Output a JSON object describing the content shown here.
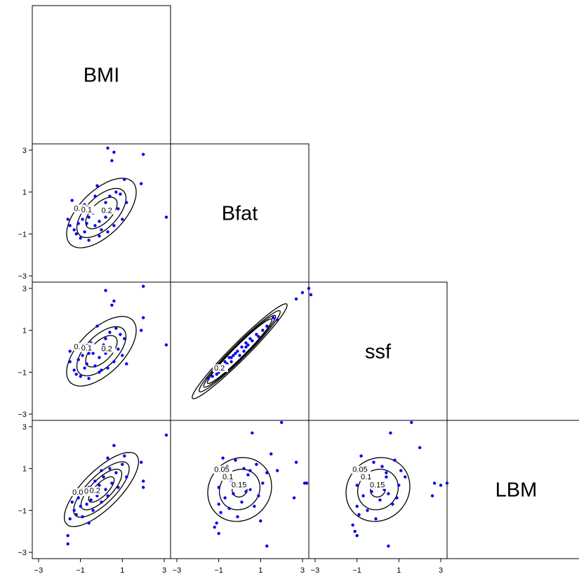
{
  "chart_data": {
    "type": "scatter",
    "layout": "lower-triangular pairs plot with bivariate density contours",
    "variables": [
      "BMI",
      "Bfat",
      "ssf",
      "LBM"
    ],
    "axis_range": [
      -3.3,
      3.3
    ],
    "ticks": [
      -3,
      -1,
      1,
      3
    ],
    "tick_labels": [
      "−3",
      "−1",
      "1",
      "3"
    ],
    "point_color": "#0000ee",
    "contour_color": "#000000",
    "contour_levels": [
      0.05,
      0.1,
      0.15,
      0.2
    ],
    "panels": [
      {
        "row": "Bfat",
        "col": "BMI",
        "rho": 0.6,
        "contour_labels": [
          "0.05",
          "0.1",
          "0.2"
        ],
        "points": [
          [
            -1.5,
            -0.6
          ],
          [
            -1.3,
            -0.8
          ],
          [
            -1.2,
            -1.0
          ],
          [
            -1.1,
            -0.5
          ],
          [
            -1.0,
            -1.2
          ],
          [
            -0.9,
            -0.3
          ],
          [
            -0.8,
            -0.9
          ],
          [
            -0.7,
            -0.5
          ],
          [
            -0.6,
            -1.3
          ],
          [
            -0.5,
            0.3
          ],
          [
            -0.4,
            0.0
          ],
          [
            -0.3,
            -0.6
          ],
          [
            -0.2,
            1.3
          ],
          [
            -0.1,
            -0.4
          ],
          [
            0.0,
            -0.8
          ],
          [
            0.1,
            0.2
          ],
          [
            0.2,
            -0.2
          ],
          [
            0.3,
            -0.9
          ],
          [
            0.4,
            0.8
          ],
          [
            0.5,
            0.0
          ],
          [
            0.6,
            -0.6
          ],
          [
            0.7,
            1.0
          ],
          [
            0.8,
            0.2
          ],
          [
            1.0,
            -0.3
          ],
          [
            1.1,
            1.6
          ],
          [
            1.2,
            0.5
          ],
          [
            -1.4,
            0.6
          ],
          [
            -0.8,
            0.4
          ],
          [
            -0.3,
            0.8
          ],
          [
            0.3,
            3.1
          ],
          [
            0.5,
            2.5
          ],
          [
            0.6,
            2.9
          ],
          [
            1.9,
            1.4
          ],
          [
            2.0,
            2.8
          ],
          [
            3.1,
            -0.2
          ],
          [
            -1.6,
            -0.3
          ],
          [
            -0.6,
            -0.2
          ],
          [
            0.2,
            0.5
          ],
          [
            0.9,
            0.9
          ],
          [
            -0.1,
            -1.1
          ]
        ]
      },
      {
        "row": "ssf",
        "col": "BMI",
        "rho": 0.6,
        "contour_labels": [
          "0.05",
          "0.1",
          "0.2"
        ],
        "points": [
          [
            -1.5,
            -0.5
          ],
          [
            -1.3,
            -0.9
          ],
          [
            -1.2,
            -1.1
          ],
          [
            -1.1,
            -0.4
          ],
          [
            -1.0,
            -1.2
          ],
          [
            -0.9,
            -0.2
          ],
          [
            -0.8,
            -0.8
          ],
          [
            -0.7,
            -0.6
          ],
          [
            -0.6,
            -1.3
          ],
          [
            -0.5,
            0.4
          ],
          [
            -0.4,
            -0.1
          ],
          [
            -0.3,
            -0.7
          ],
          [
            -0.2,
            1.2
          ],
          [
            -0.1,
            -0.3
          ],
          [
            0.0,
            -0.9
          ],
          [
            0.1,
            0.3
          ],
          [
            0.2,
            -0.1
          ],
          [
            0.3,
            -0.8
          ],
          [
            0.4,
            0.9
          ],
          [
            0.5,
            0.1
          ],
          [
            0.6,
            -0.5
          ],
          [
            0.7,
            1.1
          ],
          [
            0.8,
            0.1
          ],
          [
            1.0,
            -0.2
          ],
          [
            1.1,
            0.6
          ],
          [
            0.5,
            2.2
          ],
          [
            0.6,
            2.4
          ],
          [
            0.2,
            2.9
          ],
          [
            1.9,
            1.0
          ],
          [
            2.0,
            1.6
          ],
          [
            2.0,
            3.1
          ],
          [
            3.1,
            0.3
          ],
          [
            -1.5,
            0.0
          ],
          [
            -0.6,
            -0.1
          ],
          [
            0.2,
            0.6
          ],
          [
            0.9,
            0.8
          ],
          [
            -0.1,
            -1.0
          ],
          [
            1.2,
            -0.6
          ]
        ]
      },
      {
        "row": "ssf",
        "col": "Bfat",
        "rho": 0.97,
        "contour_labels": [
          "0.2"
        ],
        "points": [
          [
            -1.5,
            -1.3
          ],
          [
            -1.3,
            -1.2
          ],
          [
            -1.2,
            -0.9
          ],
          [
            -1.0,
            -1.0
          ],
          [
            -0.9,
            -0.7
          ],
          [
            -0.8,
            -0.8
          ],
          [
            -0.7,
            -0.5
          ],
          [
            -0.6,
            -0.6
          ],
          [
            -0.5,
            -0.3
          ],
          [
            -0.4,
            -0.5
          ],
          [
            -0.3,
            -0.2
          ],
          [
            -0.2,
            -0.1
          ],
          [
            -0.1,
            0.0
          ],
          [
            0.0,
            -0.2
          ],
          [
            0.1,
            0.2
          ],
          [
            0.2,
            0.0
          ],
          [
            0.3,
            0.4
          ],
          [
            0.4,
            0.3
          ],
          [
            0.5,
            0.6
          ],
          [
            0.6,
            0.5
          ],
          [
            0.8,
            0.8
          ],
          [
            0.9,
            0.7
          ],
          [
            1.1,
            1.0
          ],
          [
            1.3,
            1.2
          ],
          [
            1.6,
            1.6
          ],
          [
            1.8,
            1.5
          ],
          [
            2.7,
            2.5
          ],
          [
            3.0,
            2.8
          ],
          [
            3.3,
            3.0
          ],
          [
            3.4,
            2.7
          ],
          [
            -1.1,
            -1.1
          ],
          [
            -0.4,
            -0.3
          ],
          [
            0.3,
            0.2
          ]
        ]
      },
      {
        "row": "LBM",
        "col": "BMI",
        "rho": 0.75,
        "contour_labels": [
          "0.05",
          "0.15",
          "0.2"
        ],
        "points": [
          [
            -1.6,
            -2.6
          ],
          [
            -1.6,
            -2.2
          ],
          [
            -1.5,
            -1.4
          ],
          [
            -1.4,
            -0.6
          ],
          [
            -1.3,
            -1.0
          ],
          [
            -1.2,
            -1.2
          ],
          [
            -1.1,
            -0.4
          ],
          [
            -1.0,
            -0.8
          ],
          [
            -0.9,
            -1.3
          ],
          [
            -0.8,
            -0.2
          ],
          [
            -0.7,
            -0.7
          ],
          [
            -0.6,
            0.1
          ],
          [
            -0.5,
            -0.5
          ],
          [
            -0.4,
            -1.0
          ],
          [
            -0.3,
            0.4
          ],
          [
            -0.2,
            -0.3
          ],
          [
            -0.1,
            0.2
          ],
          [
            0.0,
            -0.6
          ],
          [
            0.1,
            0.6
          ],
          [
            0.2,
            0.0
          ],
          [
            0.3,
            -0.3
          ],
          [
            0.4,
            1.0
          ],
          [
            0.5,
            0.3
          ],
          [
            0.6,
            2.1
          ],
          [
            0.7,
            0.8
          ],
          [
            0.8,
            0.1
          ],
          [
            1.0,
            1.2
          ],
          [
            1.1,
            1.6
          ],
          [
            1.2,
            0.6
          ],
          [
            1.9,
            1.3
          ],
          [
            2.0,
            0.4
          ],
          [
            2.0,
            0.1
          ],
          [
            3.1,
            2.6
          ],
          [
            -0.6,
            -1.6
          ],
          [
            0.3,
            1.5
          ],
          [
            0.0,
            0.9
          ],
          [
            -0.9,
            0.0
          ]
        ]
      },
      {
        "row": "LBM",
        "col": "Bfat",
        "rho": 0.1,
        "contour_labels": [
          "0.05",
          "0.15",
          "0.1"
        ],
        "points": [
          [
            -1.2,
            -1.8
          ],
          [
            -1.1,
            -1.6
          ],
          [
            -1.0,
            -0.7
          ],
          [
            -1.0,
            0.1
          ],
          [
            -0.9,
            -1.1
          ],
          [
            -0.8,
            0.6
          ],
          [
            -0.8,
            1.5
          ],
          [
            -0.7,
            -0.4
          ],
          [
            -0.6,
            1.1
          ],
          [
            -0.5,
            -0.9
          ],
          [
            -0.4,
            0.4
          ],
          [
            -0.3,
            -0.2
          ],
          [
            -0.2,
            1.4
          ],
          [
            -0.1,
            -1.3
          ],
          [
            0.0,
            0.2
          ],
          [
            0.1,
            -0.6
          ],
          [
            0.2,
            1.0
          ],
          [
            0.3,
            -0.1
          ],
          [
            0.4,
            0.7
          ],
          [
            0.5,
            0.0
          ],
          [
            0.6,
            2.7
          ],
          [
            0.7,
            -0.8
          ],
          [
            0.8,
            1.2
          ],
          [
            0.9,
            -0.3
          ],
          [
            1.0,
            -1.5
          ],
          [
            1.1,
            0.3
          ],
          [
            1.3,
            0.8
          ],
          [
            1.5,
            1.7
          ],
          [
            1.8,
            0.9
          ],
          [
            2.0,
            3.2
          ],
          [
            2.7,
            1.3
          ],
          [
            2.6,
            -0.4
          ],
          [
            3.1,
            0.3
          ],
          [
            3.2,
            0.3
          ],
          [
            1.3,
            -2.7
          ],
          [
            -1.0,
            -2.1
          ],
          [
            0.5,
            0.9
          ]
        ]
      },
      {
        "row": "LBM",
        "col": "ssf",
        "rho": 0.1,
        "contour_labels": [
          "0.05",
          "0.15",
          "0.1"
        ],
        "points": [
          [
            -1.2,
            -1.7
          ],
          [
            -1.1,
            -2.0
          ],
          [
            -1.0,
            -0.8
          ],
          [
            -1.0,
            0.2
          ],
          [
            -0.9,
            -1.2
          ],
          [
            -0.8,
            0.5
          ],
          [
            -0.8,
            1.6
          ],
          [
            -0.7,
            -0.3
          ],
          [
            -0.6,
            1.0
          ],
          [
            -0.5,
            -1.0
          ],
          [
            -0.4,
            0.5
          ],
          [
            -0.3,
            -0.1
          ],
          [
            -0.2,
            1.3
          ],
          [
            -0.1,
            -1.4
          ],
          [
            0.0,
            0.3
          ],
          [
            0.1,
            -0.5
          ],
          [
            0.2,
            1.1
          ],
          [
            0.3,
            0.0
          ],
          [
            0.4,
            0.6
          ],
          [
            0.5,
            -0.2
          ],
          [
            0.6,
            2.7
          ],
          [
            0.7,
            -0.7
          ],
          [
            0.8,
            1.4
          ],
          [
            0.9,
            -0.4
          ],
          [
            1.0,
            0.2
          ],
          [
            1.1,
            0.9
          ],
          [
            1.3,
            0.6
          ],
          [
            1.6,
            3.2
          ],
          [
            2.0,
            2.0
          ],
          [
            2.7,
            0.3
          ],
          [
            2.6,
            -0.3
          ],
          [
            3.0,
            0.2
          ],
          [
            3.3,
            0.3
          ],
          [
            0.5,
            -2.7
          ],
          [
            -1.0,
            -2.2
          ],
          [
            0.4,
            0.8
          ]
        ]
      }
    ]
  }
}
